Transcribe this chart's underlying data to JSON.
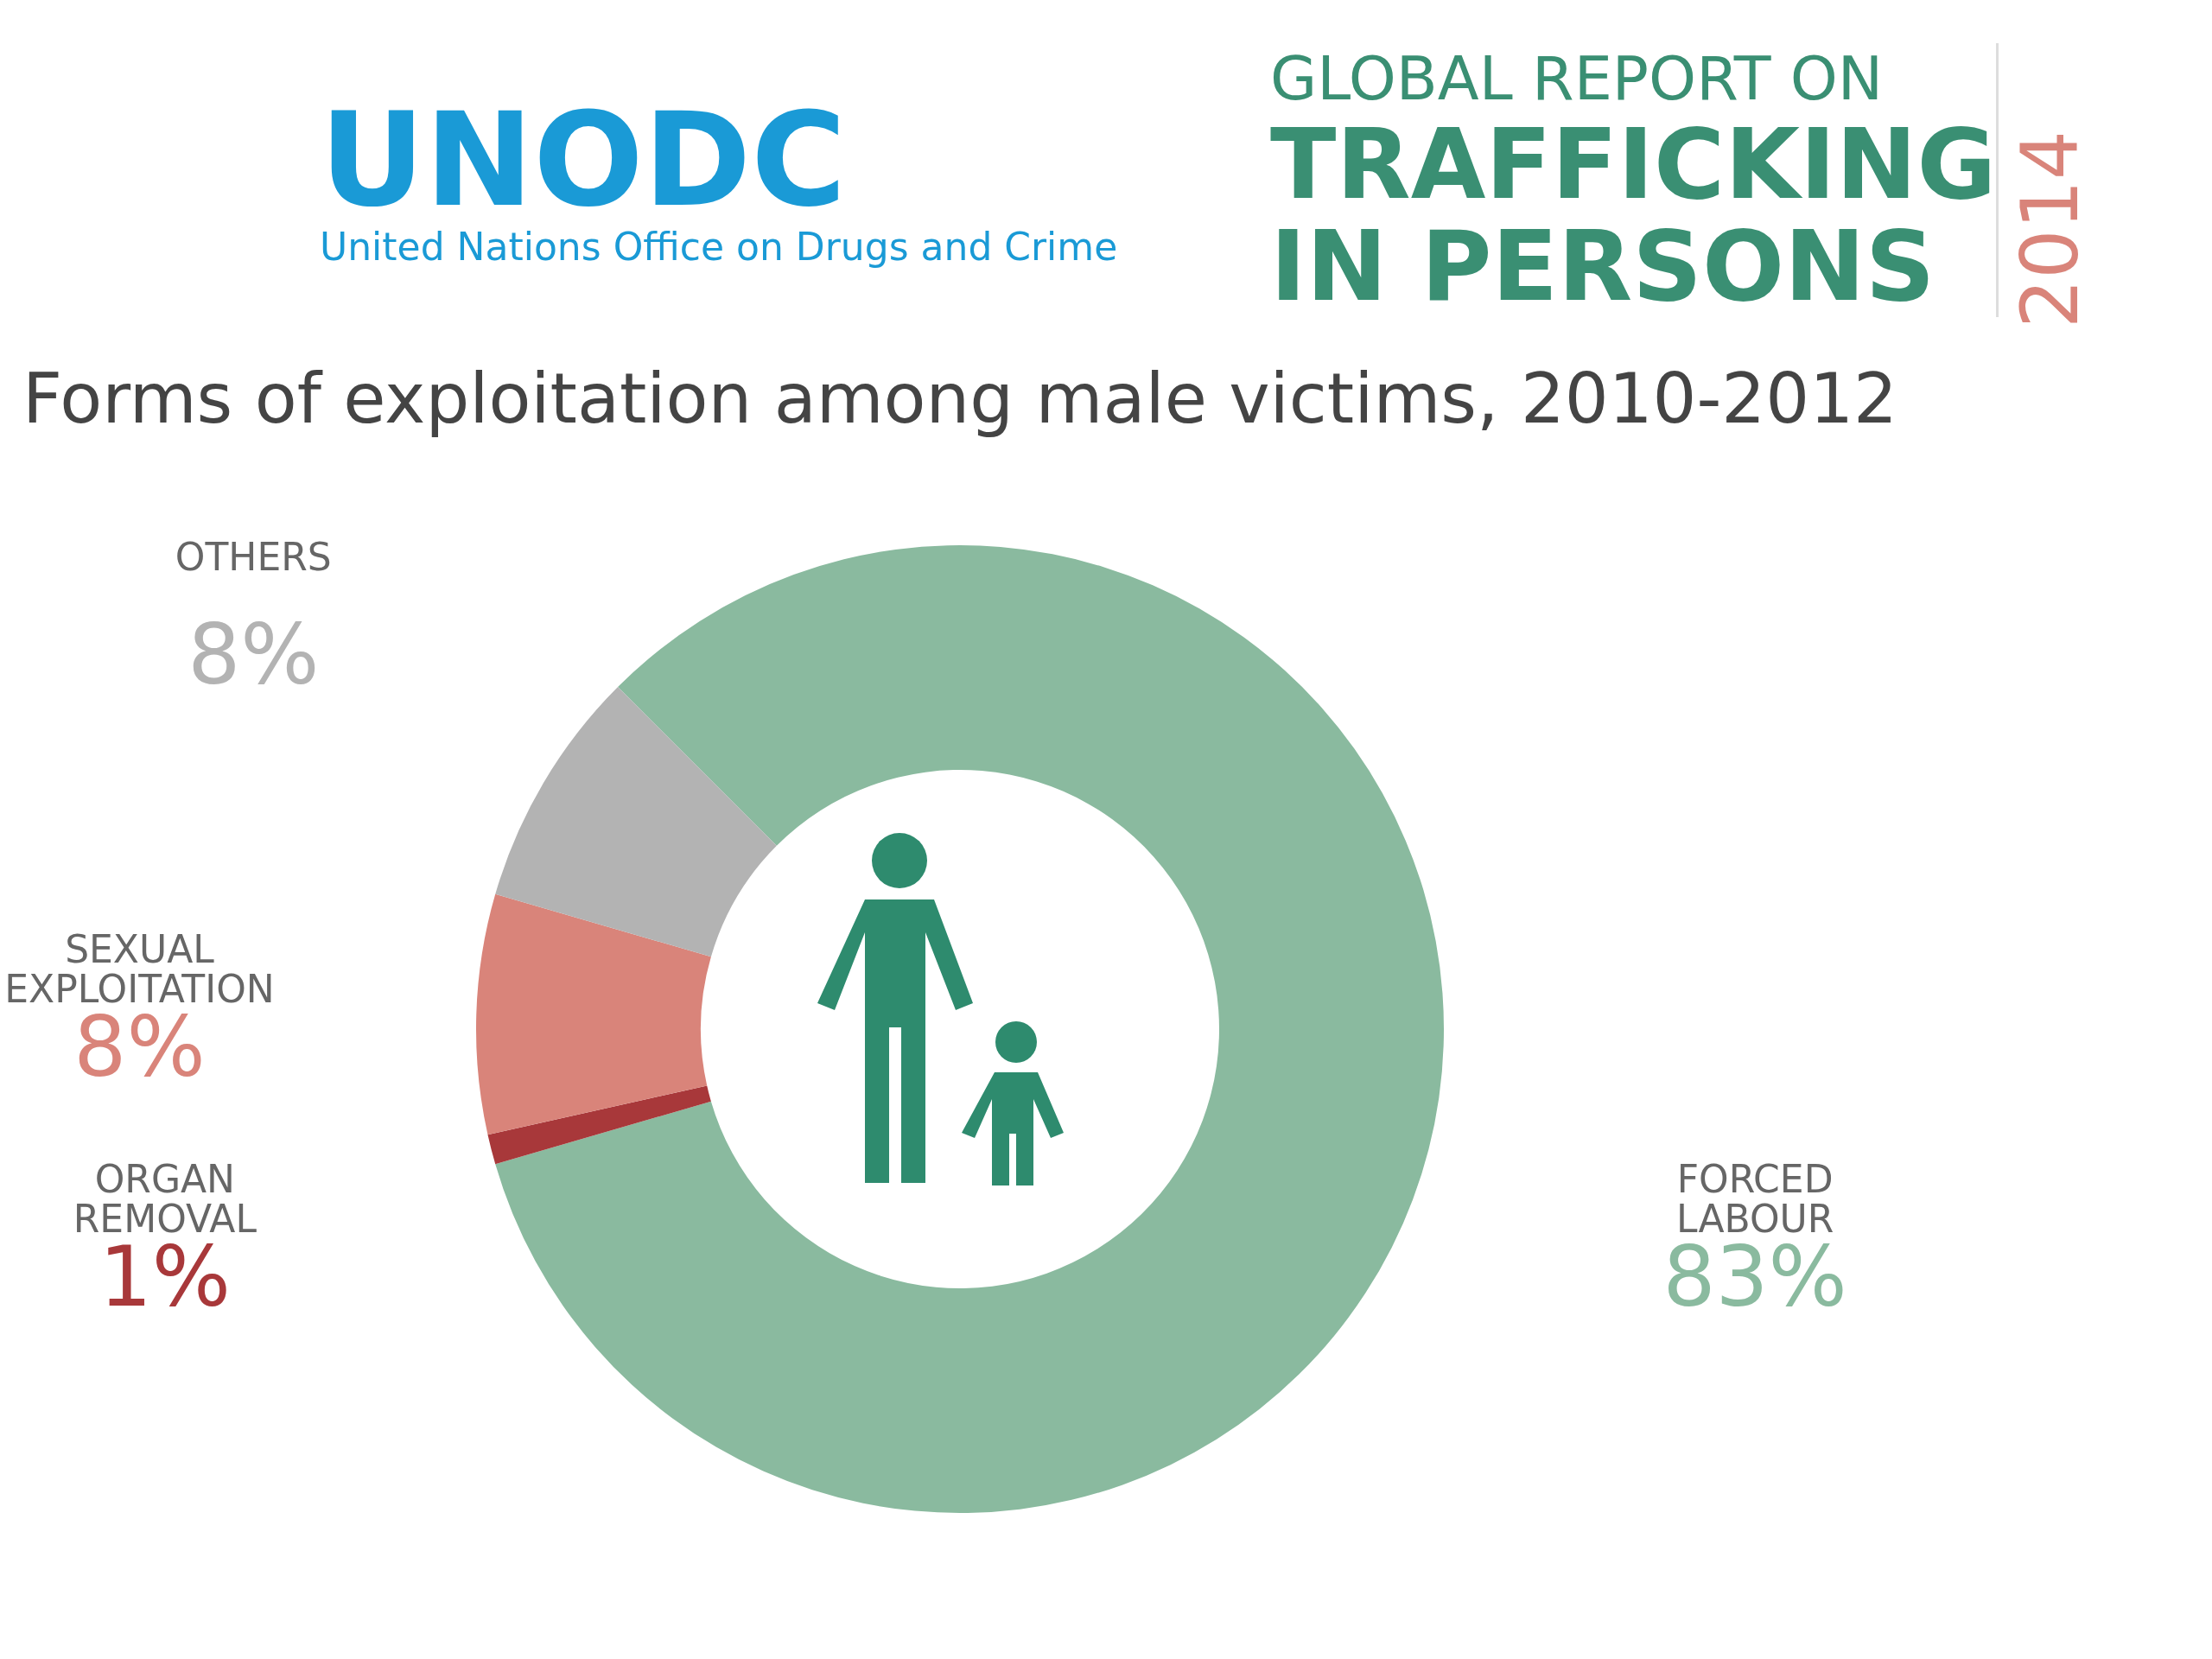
{
  "chart_data": {
    "type": "donut",
    "title": "Forms of exploitation among male victims, 2010-2012",
    "categories": [
      "FORCED LABOUR",
      "ORGAN REMOVAL",
      "SEXUAL EXPLOITATION",
      "OTHERS"
    ],
    "values": [
      83,
      1,
      8,
      8
    ],
    "colors": [
      "#8aba9f",
      "#a8383a",
      "#d9847a",
      "#b3b3b3"
    ],
    "value_labels": [
      "83%",
      "1%",
      "8%",
      "8%"
    ],
    "annotations": [
      "UNODC",
      "United Nations Office on Drugs and Crime",
      "GLOBAL REPORT ON",
      "TRAFFICKING IN PERSONS",
      "2014"
    ],
    "legend": false
  }
}
